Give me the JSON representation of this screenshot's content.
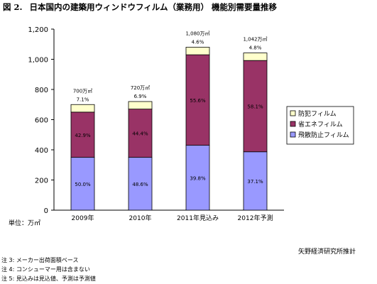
{
  "figure": {
    "number": "図 2.",
    "title": "日本国内の建築用ウィンドウフィルム（業務用） 機能別需要量推移"
  },
  "unit_label": "単位：万㎡",
  "source": "矢野経済研究所推計",
  "notes": [
    "注 3: メーカー出荷面積ベース",
    "注 4: コンシューマー用は含まない",
    "注 5: 見込みは見込値、予測は予測値"
  ],
  "colors": {
    "crime_prevention": "#FFFFCC",
    "energy_saving": "#993366",
    "shatter_prevention": "#9999FF"
  },
  "chart_data": {
    "type": "bar",
    "stacked": true,
    "categories": [
      "2009年",
      "2010年",
      "2011年見込み",
      "2012年予測"
    ],
    "series": [
      {
        "name": "飛散防止フィルム",
        "values": [
          350,
          350,
          430,
          387
        ],
        "pct_labels": [
          "50.0%",
          "48.6%",
          "39.8%",
          "37.1%"
        ]
      },
      {
        "name": "省エネフィルム",
        "values": [
          300,
          320,
          600,
          605
        ],
        "pct_labels": [
          "42.9%",
          "44.4%",
          "55.6%",
          "58.1%"
        ]
      },
      {
        "name": "防犯フィルム",
        "values": [
          50,
          50,
          50,
          50
        ],
        "pct_labels": [
          "7.1%",
          "6.9%",
          "4.6%",
          "4.8%"
        ]
      }
    ],
    "totals": [
      700,
      720,
      1080,
      1042
    ],
    "total_labels": [
      "700万㎡",
      "720万㎡",
      "1,080万㎡",
      "1,042万㎡"
    ],
    "yticks": [
      "0",
      "200",
      "400",
      "600",
      "800",
      "1,000",
      "1,200"
    ],
    "ylim": [
      0,
      1200
    ],
    "legend_position": "right",
    "grid": false
  }
}
